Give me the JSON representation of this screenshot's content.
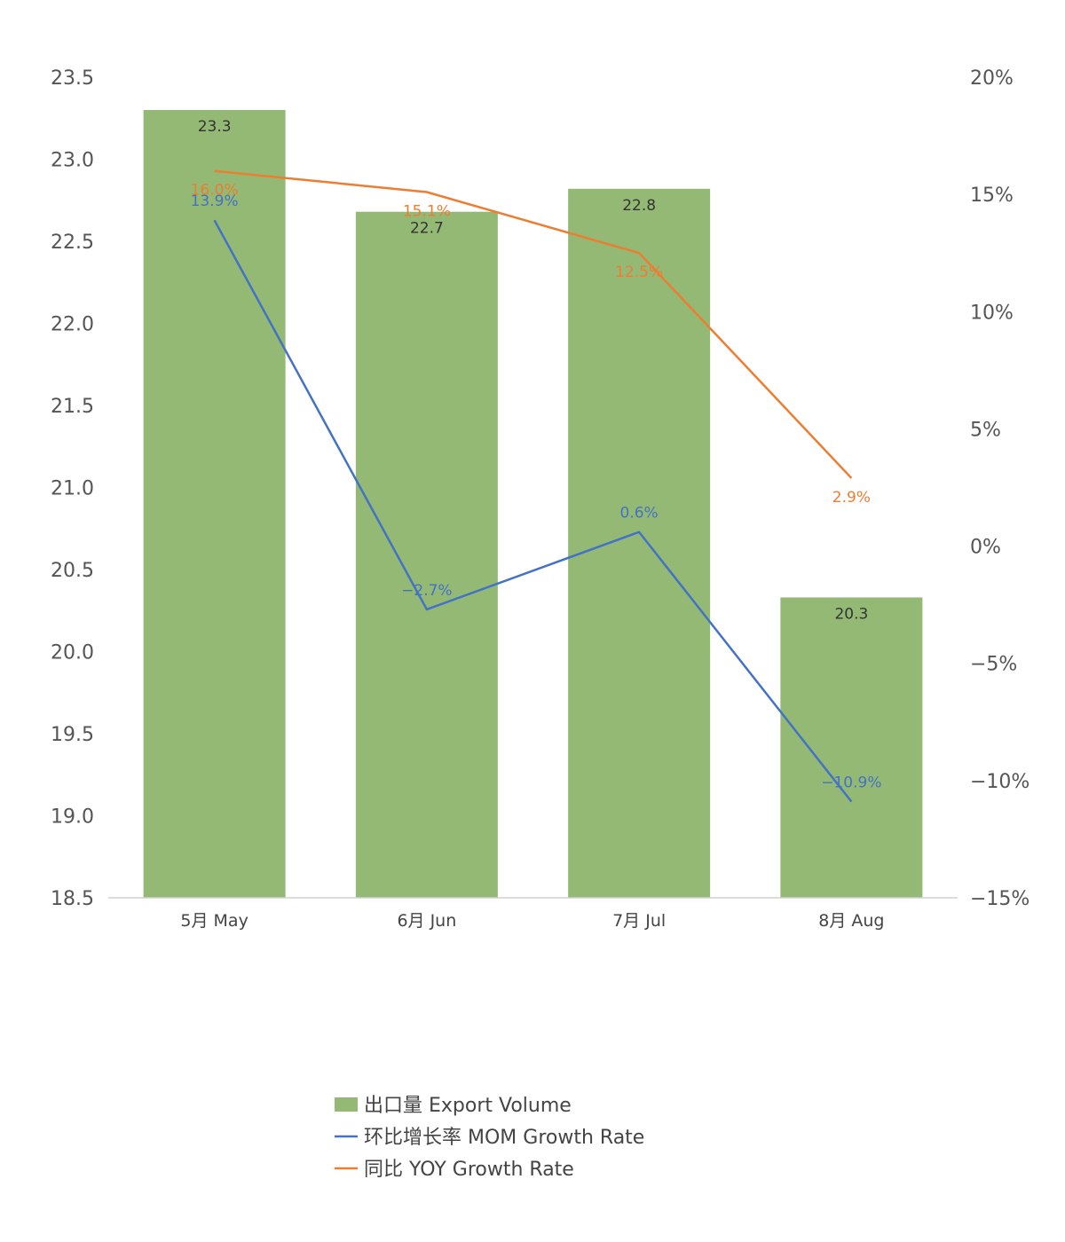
{
  "chart_data": {
    "type": "bar",
    "categories": [
      "5月 May",
      "6月 Jun",
      "7月 Jul",
      "8月 Aug"
    ],
    "left_axis": {
      "ylim": [
        18.5,
        23.5
      ],
      "ticks": [
        "18.5",
        "19.0",
        "19.5",
        "20.0",
        "20.5",
        "21.0",
        "21.5",
        "22.0",
        "22.5",
        "23.0",
        "23.5"
      ],
      "tick_values": [
        18.5,
        19.0,
        19.5,
        20.0,
        20.5,
        21.0,
        21.5,
        22.0,
        22.5,
        23.0,
        23.5
      ]
    },
    "right_axis": {
      "ylim": [
        -15,
        20
      ],
      "ticks": [
        "−15%",
        "−10%",
        "−5%",
        "0%",
        "5%",
        "10%",
        "15%",
        "20%"
      ],
      "tick_values": [
        -15,
        -10,
        -5,
        0,
        5,
        10,
        15,
        20
      ]
    },
    "series": [
      {
        "name": "出口量 Export Volume",
        "type": "bar",
        "axis": "left",
        "color": "#93B975",
        "values": [
          23.3,
          22.68,
          22.82,
          20.33
        ],
        "labels": [
          "23.3",
          "22.7",
          "22.8",
          "20.3"
        ]
      },
      {
        "name": "环比增长率 MOM Growth Rate",
        "type": "line",
        "axis": "right",
        "color": "#4472C4",
        "values": [
          13.9,
          -2.7,
          0.6,
          -10.9
        ],
        "labels": [
          "13.9%",
          "−2.7%",
          "0.6%",
          "−10.9%"
        ]
      },
      {
        "name": "同比 YOY Growth Rate",
        "type": "line",
        "axis": "right",
        "color": "#ED7D31",
        "values": [
          16.0,
          15.1,
          12.5,
          2.9
        ],
        "labels": [
          "16.0%",
          "15.1%",
          "12.5%",
          "2.9%"
        ]
      }
    ],
    "legend_position": "bottom",
    "grid": false
  }
}
